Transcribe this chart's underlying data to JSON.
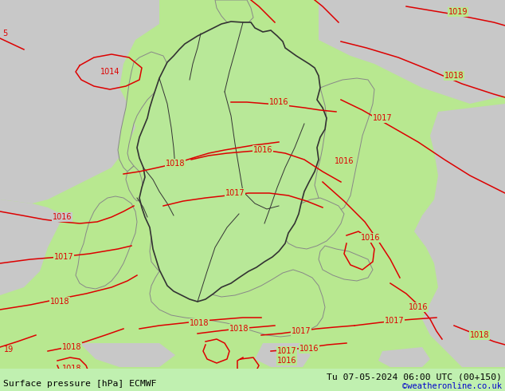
{
  "title_left": "Surface pressure [hPa] ECMWF",
  "title_right": "Tu 07-05-2024 06:00 UTC (00+150)",
  "credit": "©weatheronline.co.uk",
  "bg_green_light": "#b8e890",
  "gray_color": "#c8c8c8",
  "green_land": "#b0e080",
  "border_dark": "#333333",
  "border_gray": "#888888",
  "isobar_red": "#dd0000",
  "isobar_black": "#111111",
  "text_black": "#000000",
  "text_red": "#dd0000",
  "credit_color": "#0000cc",
  "bottom_bar": "#c0f0b0",
  "fig_width": 6.34,
  "fig_height": 4.9,
  "dpi": 100
}
